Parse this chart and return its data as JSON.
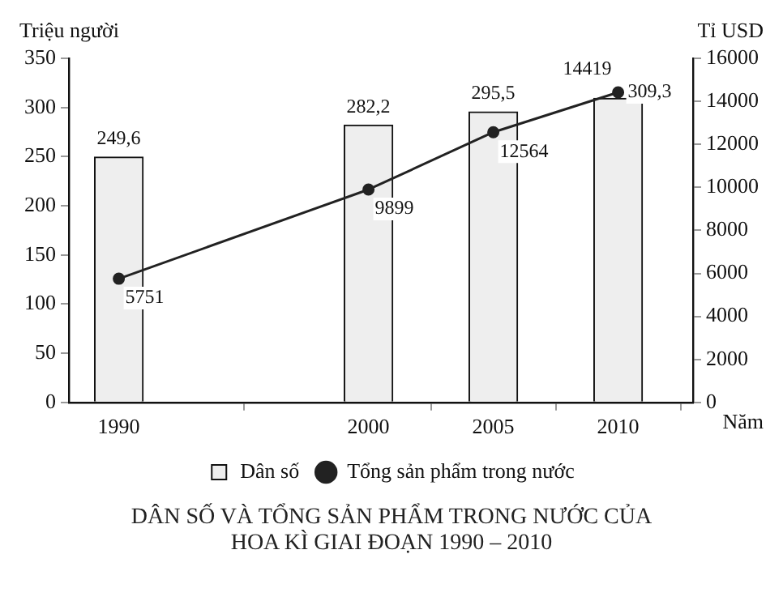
{
  "chart_data": {
    "type": "bar",
    "title": "DÂN SỐ VÀ TỔNG SẢN PHẨM TRONG NƯỚC CỦA HOA KÌ GIAI ĐOẠN 1990 – 2010",
    "x": [
      1990,
      2000,
      2005,
      2010
    ],
    "xlim": [
      1988,
      2013
    ],
    "xticks": [
      1990,
      2000,
      2005,
      2010
    ],
    "xlabel": "Năm",
    "ylabel": "Triệu người",
    "y2label": "Tỉ USD",
    "ylim": [
      0,
      350
    ],
    "yticks": [
      0,
      50,
      100,
      150,
      200,
      250,
      300,
      350
    ],
    "y2lim": [
      0,
      16000
    ],
    "y2ticks": [
      0,
      2000,
      4000,
      6000,
      8000,
      10000,
      12000,
      14000,
      16000
    ],
    "series": [
      {
        "name": "Dân số",
        "color": "#eeeeee",
        "values": [
          249.6,
          282.2,
          295.5,
          309.3
        ],
        "value_labels": [
          "249,6",
          "282,2",
          "295,5",
          "309,3"
        ]
      },
      {
        "name": "Tổng sản phẩm trong nước",
        "type": "line",
        "axis": "y2",
        "color": "#222222",
        "values": [
          5751,
          9899,
          12564,
          14419
        ],
        "value_labels": [
          "5751",
          "9899",
          "12564",
          "14419"
        ]
      }
    ],
    "grid": false,
    "legend": "bottom",
    "marker": "circle",
    "line_style": "solid"
  }
}
